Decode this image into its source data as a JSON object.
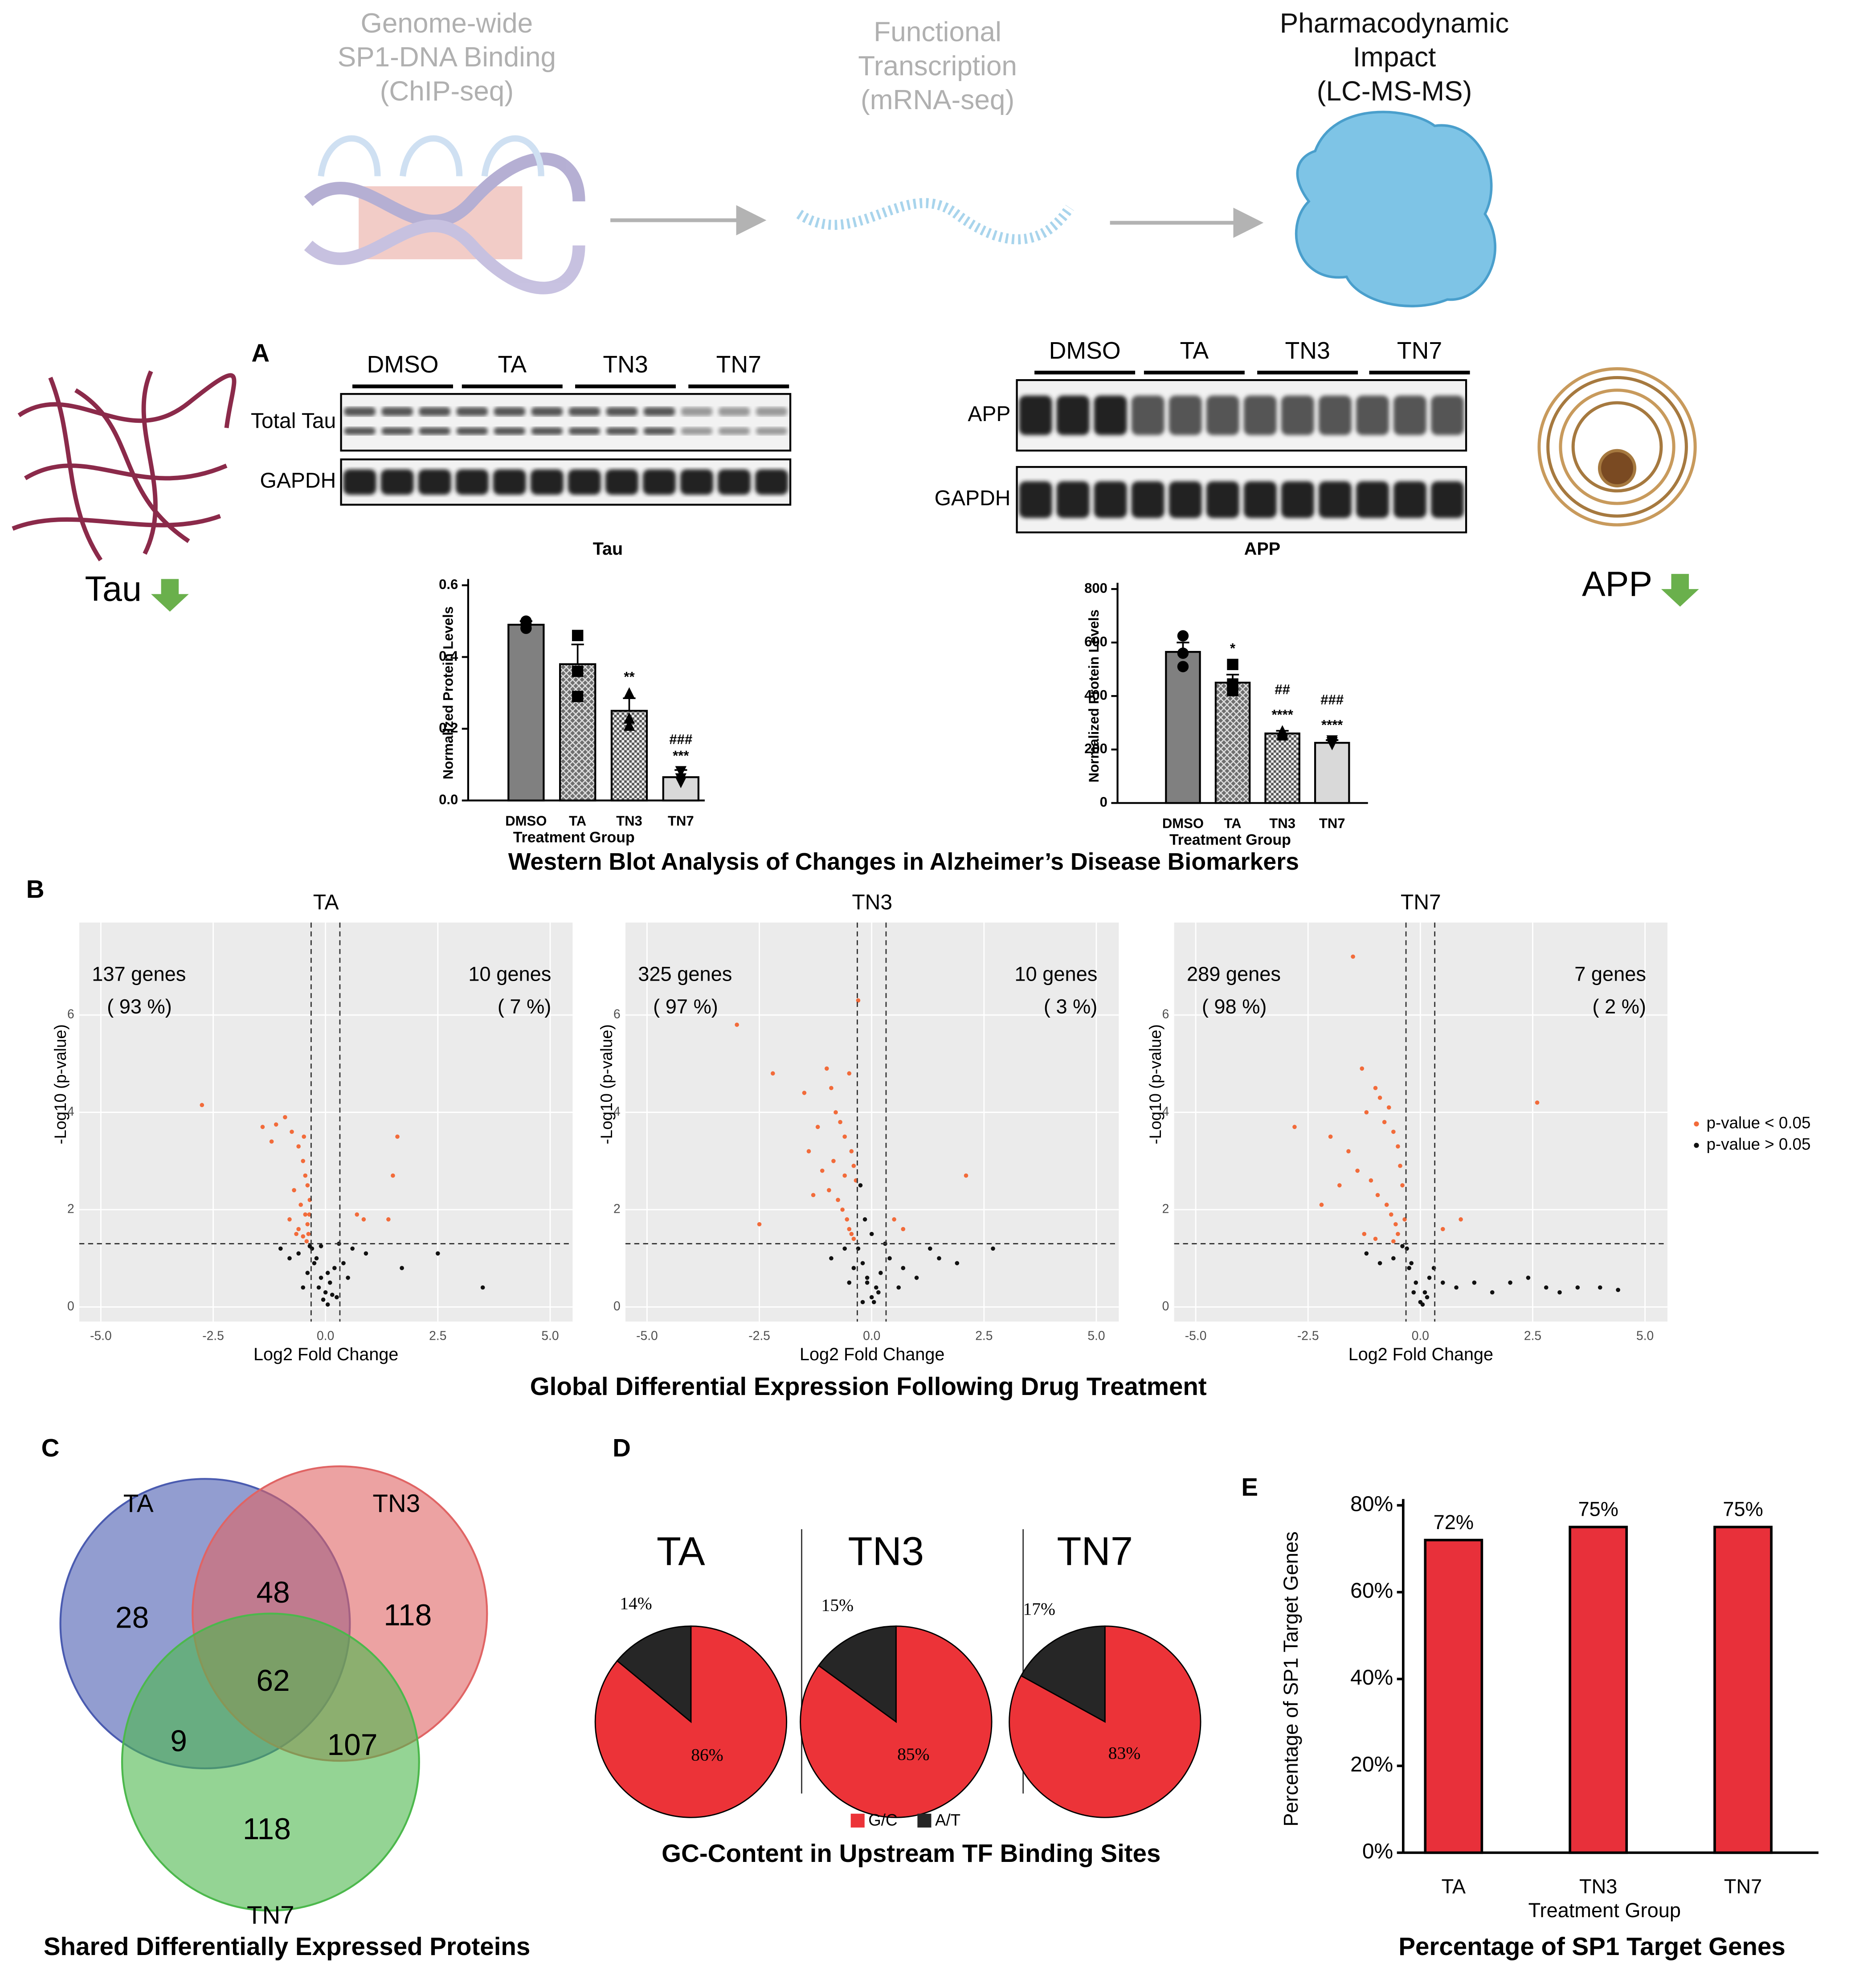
{
  "workflow": [
    {
      "lines": [
        "Genome-wide",
        "SP1-DNA Binding",
        "(ChIP-seq)"
      ]
    },
    {
      "lines": [
        "Functional",
        "Transcription",
        "(mRNA-seq)"
      ]
    },
    {
      "lines": [
        "Pharmacodynamic",
        "Impact",
        "(LC-MS-MS)"
      ]
    }
  ],
  "panel_labels": [
    "A",
    "B",
    "C",
    "D",
    "E"
  ],
  "icons": {
    "left": "Tau",
    "right": "APP"
  },
  "western_blot": {
    "blots": [
      {
        "groups": [
          "DMSO",
          "TA",
          "TN3",
          "TN7"
        ],
        "rows": [
          "Total Tau",
          "GAPDH"
        ]
      },
      {
        "groups": [
          "DMSO",
          "TA",
          "TN3",
          "TN7"
        ],
        "rows": [
          "APP",
          "GAPDH"
        ]
      }
    ],
    "caption": "Western Blot Analysis of Changes in Alzheimer’s Disease Biomarkers"
  },
  "chart_data": [
    {
      "type": "bar",
      "title": "Tau",
      "xlabel": "Treatment Group",
      "ylabel": "Normalized Protein  Levels",
      "categories": [
        "DMSO",
        "TA",
        "TN3",
        "TN7"
      ],
      "values": [
        0.49,
        0.38,
        0.25,
        0.065
      ],
      "errors": [
        0.01,
        0.055,
        0.035,
        0.02
      ],
      "points": [
        [
          0.5,
          0.49,
          0.48
        ],
        [
          0.46,
          0.36,
          0.29
        ],
        [
          0.3,
          0.23,
          0.21
        ],
        [
          0.08,
          0.06,
          0.05
        ]
      ],
      "markers": [
        "circle",
        "square",
        "triangle",
        "triangle-down"
      ],
      "significance": [
        [],
        [],
        [
          "**"
        ],
        [
          "###",
          "***"
        ]
      ],
      "colors": [
        "#808080",
        "#7a7a7a",
        "#cccccc",
        "#d9d9d9"
      ],
      "patterns": [
        "none",
        "crosshatch",
        "checker",
        "none"
      ],
      "ylim": [
        0,
        0.6
      ],
      "yticks": [
        {
          "value": 0,
          "label": "0.0"
        },
        0.2,
        0.4,
        0.6
      ]
    },
    {
      "type": "bar",
      "title": "APP",
      "xlabel": "Treatment Group",
      "ylabel": "Normalized Protein  Levels",
      "categories": [
        "DMSO",
        "TA",
        "TN3",
        "TN7"
      ],
      "values": [
        565,
        450,
        260,
        225
      ],
      "errors": [
        35,
        30,
        10,
        10
      ],
      "points": [
        [
          625,
          560,
          510
        ],
        [
          518,
          445,
          420
        ],
        [
          270,
          262,
          255
        ],
        [
          232,
          225,
          218
        ]
      ],
      "markers": [
        "circle",
        "square",
        "triangle",
        "triangle-down"
      ],
      "significance": [
        [],
        [
          "*"
        ],
        [
          "##",
          "****"
        ],
        [
          "###",
          "****"
        ]
      ],
      "colors": [
        "#808080",
        "#7a7a7a",
        "#cccccc",
        "#d9d9d9"
      ],
      "patterns": [
        "none",
        "crosshatch",
        "checker",
        "none"
      ],
      "ylim": [
        0,
        800
      ],
      "yticks": [
        0,
        200,
        400,
        600,
        800
      ]
    },
    {
      "type": "volcano",
      "xlabel": "Log2 Fold Change",
      "ylabel": "-Log10 (p-value)",
      "caption": "Global Differential Expression Following Drug Treatment",
      "xlim": [
        -5.48,
        5.5
      ],
      "ylim": [
        -0.3,
        7.9
      ],
      "xticks": [
        {
          "value": -5,
          "label": "-5.0"
        },
        {
          "value": -2.5,
          "label": "-2.5"
        },
        {
          "value": 0,
          "label": "0.0"
        },
        {
          "value": 2.5,
          "label": "2.5"
        },
        {
          "value": 5,
          "label": "5.0"
        }
      ],
      "yticks": [
        0,
        2,
        4,
        6
      ],
      "vlines": [
        -0.32,
        0.32
      ],
      "hline": 1.3,
      "grid": true,
      "legend": [
        {
          "name": "p-value < 0.05",
          "color": "#f26b3a"
        },
        {
          "name": "p-value > 0.05",
          "color": "#111111"
        }
      ],
      "panels": [
        {
          "title": "TA",
          "left": [
            "137 genes",
            "( 93 %)"
          ],
          "right": [
            "10 genes",
            "( 7 %)"
          ],
          "series": [
            {
              "x": [
                -2.75,
                -1.4,
                -1.1,
                -0.9,
                -0.75,
                -0.6,
                -0.5,
                -0.45,
                -0.4,
                -0.35,
                -0.7,
                -0.55,
                -0.45,
                -0.4,
                -0.38,
                -0.6,
                -0.5,
                -0.42,
                -0.36,
                -0.8,
                -0.65,
                -0.48,
                0.7,
                0.85,
                1.4,
                1.5,
                1.6,
                -1.2
              ],
              "values": [
                4.15,
                3.7,
                3.75,
                3.9,
                3.6,
                3.3,
                3.0,
                2.7,
                2.5,
                2.2,
                2.4,
                2.1,
                1.9,
                1.7,
                1.5,
                1.6,
                1.45,
                1.35,
                1.9,
                1.8,
                1.5,
                3.5,
                1.9,
                1.8,
                1.8,
                2.7,
                3.5,
                3.4
              ]
            },
            {
              "x": [
                -0.3,
                -0.2,
                -0.1,
                0,
                0.1,
                0.2,
                -0.25,
                -0.15,
                -0.05,
                0.05,
                0.15,
                -0.6,
                -0.8,
                -1.0,
                0.4,
                0.6,
                0.9,
                -0.4,
                -0.35,
                0.3,
                1.7,
                2.5,
                3.5,
                -0.1,
                0.05,
                -0.5,
                0.5,
                0.25
              ],
              "values": [
                1.2,
                1.0,
                0.6,
                0.3,
                0.5,
                0.8,
                0.9,
                0.4,
                0.15,
                0.05,
                0.25,
                1.1,
                1.0,
                1.2,
                0.9,
                1.2,
                1.1,
                0.7,
                1.25,
                1.3,
                0.8,
                1.1,
                0.4,
                1.25,
                0.7,
                0.4,
                0.6,
                0.2
              ]
            }
          ]
        },
        {
          "title": "TN3",
          "left": [
            "325 genes",
            "( 97 %)"
          ],
          "right": [
            "10 genes",
            "( 3 %)"
          ],
          "series": [
            {
              "x": [
                -3.0,
                -2.2,
                -1.5,
                -1.2,
                -1.0,
                -0.9,
                -0.8,
                -0.7,
                -0.6,
                -0.5,
                -0.45,
                -0.4,
                -0.35,
                -1.1,
                -0.95,
                -0.75,
                -0.65,
                -0.55,
                -0.5,
                -0.45,
                -0.4,
                -1.4,
                -0.85,
                -0.6,
                -2.5,
                0.5,
                0.7,
                2.1,
                -0.3,
                -1.3
              ],
              "values": [
                5.8,
                4.8,
                4.4,
                3.7,
                4.9,
                4.5,
                4.0,
                3.8,
                3.5,
                4.8,
                3.2,
                2.9,
                2.6,
                2.8,
                2.4,
                2.2,
                2.0,
                1.8,
                1.6,
                1.5,
                1.4,
                3.2,
                3.0,
                2.7,
                1.7,
                1.8,
                1.6,
                2.7,
                6.3,
                2.3
              ]
            },
            {
              "x": [
                -0.3,
                -0.2,
                -0.1,
                0,
                0.1,
                0.2,
                -0.25,
                -0.15,
                0.05,
                0.15,
                -0.6,
                -0.9,
                0.4,
                0.7,
                1.0,
                1.3,
                1.5,
                1.9,
                2.7,
                -0.4,
                -0.1,
                0.0,
                0.3,
                -0.5,
                0.6,
                -0.2
              ],
              "values": [
                1.2,
                0.9,
                0.5,
                0.2,
                0.4,
                0.7,
                2.5,
                1.8,
                0.1,
                0.3,
                1.2,
                1.0,
                1.0,
                0.8,
                0.6,
                1.2,
                1.0,
                0.9,
                1.2,
                0.8,
                0.6,
                1.5,
                1.3,
                0.5,
                0.4,
                0.1
              ]
            }
          ]
        },
        {
          "title": "TN7",
          "left": [
            "289 genes",
            "( 98 %)"
          ],
          "right": [
            "7 genes",
            "( 2 %)"
          ],
          "series": [
            {
              "x": [
                -1.5,
                -2.8,
                -2.0,
                -1.6,
                -1.3,
                -1.2,
                -1.0,
                -0.9,
                -0.8,
                -0.7,
                -0.6,
                -0.5,
                -0.45,
                -0.4,
                -1.4,
                -1.1,
                -0.95,
                -0.75,
                -0.65,
                -0.55,
                -0.5,
                -1.8,
                -2.2,
                0.5,
                0.9,
                2.6,
                -1.0,
                -0.6,
                -0.35,
                -1.25
              ],
              "values": [
                7.2,
                3.7,
                3.5,
                3.2,
                4.9,
                4.0,
                4.5,
                4.3,
                3.8,
                4.1,
                3.6,
                3.3,
                2.9,
                2.5,
                2.8,
                2.6,
                2.3,
                2.1,
                1.9,
                1.7,
                1.5,
                2.5,
                2.1,
                1.6,
                1.8,
                4.2,
                1.4,
                1.35,
                1.8,
                1.5
              ]
            },
            {
              "x": [
                -0.3,
                -0.2,
                -0.1,
                0,
                0.1,
                0.2,
                -0.25,
                -0.15,
                0.05,
                0.15,
                -0.6,
                -0.9,
                -1.2,
                0.5,
                0.8,
                1.2,
                1.6,
                2.0,
                2.4,
                2.8,
                3.1,
                3.5,
                4.0,
                4.4,
                -0.4,
                0.3
              ],
              "values": [
                1.2,
                0.9,
                0.5,
                0.1,
                0.3,
                0.6,
                0.8,
                0.3,
                0.05,
                0.2,
                1.0,
                0.9,
                1.1,
                0.5,
                0.4,
                0.5,
                0.3,
                0.5,
                0.6,
                0.4,
                0.3,
                0.4,
                0.4,
                0.35,
                1.25,
                0.8
              ]
            }
          ]
        }
      ]
    },
    {
      "type": "venn",
      "sets": [
        "TA",
        "TN3",
        "TN7"
      ],
      "colors": [
        "#4a5bb0",
        "#e06464",
        "#4cb84c"
      ],
      "values": [
        28,
        48,
        118,
        62,
        9,
        107,
        118
      ],
      "caption": "Shared Differentially Expressed Proteins"
    },
    {
      "type": "pie",
      "categories": [
        "G/C",
        "A/T"
      ],
      "colors": [
        "#ec3338",
        "#262626"
      ],
      "series": [
        {
          "name": "TA",
          "values": [
            86,
            14
          ],
          "value_labels": [
            "86%",
            "14%"
          ]
        },
        {
          "name": "TN3",
          "values": [
            85,
            15
          ],
          "value_labels": [
            "85%",
            "15%"
          ]
        },
        {
          "name": "TN7",
          "values": [
            83,
            17
          ],
          "value_labels": [
            "83%",
            "17%"
          ]
        }
      ],
      "caption": "GC-Content in Upstream TF Binding Sites"
    },
    {
      "type": "bar",
      "xlabel": "Treatment Group",
      "ylabel": "Percentage of SP1 Target Genes",
      "caption": "Percentage of SP1 Target Genes",
      "categories": [
        "TA",
        "TN3",
        "TN7"
      ],
      "values": [
        72,
        75,
        75
      ],
      "value_labels": [
        "72%",
        "75%",
        "75%"
      ],
      "color": "#e8303a",
      "ylim": [
        0,
        80
      ],
      "yticks": [
        {
          "value": 0,
          "label": "0%"
        },
        {
          "value": 20,
          "label": "20%"
        },
        {
          "value": 40,
          "label": "40%"
        },
        {
          "value": 60,
          "label": "60%"
        },
        {
          "value": 80,
          "label": "80%"
        }
      ]
    }
  ]
}
